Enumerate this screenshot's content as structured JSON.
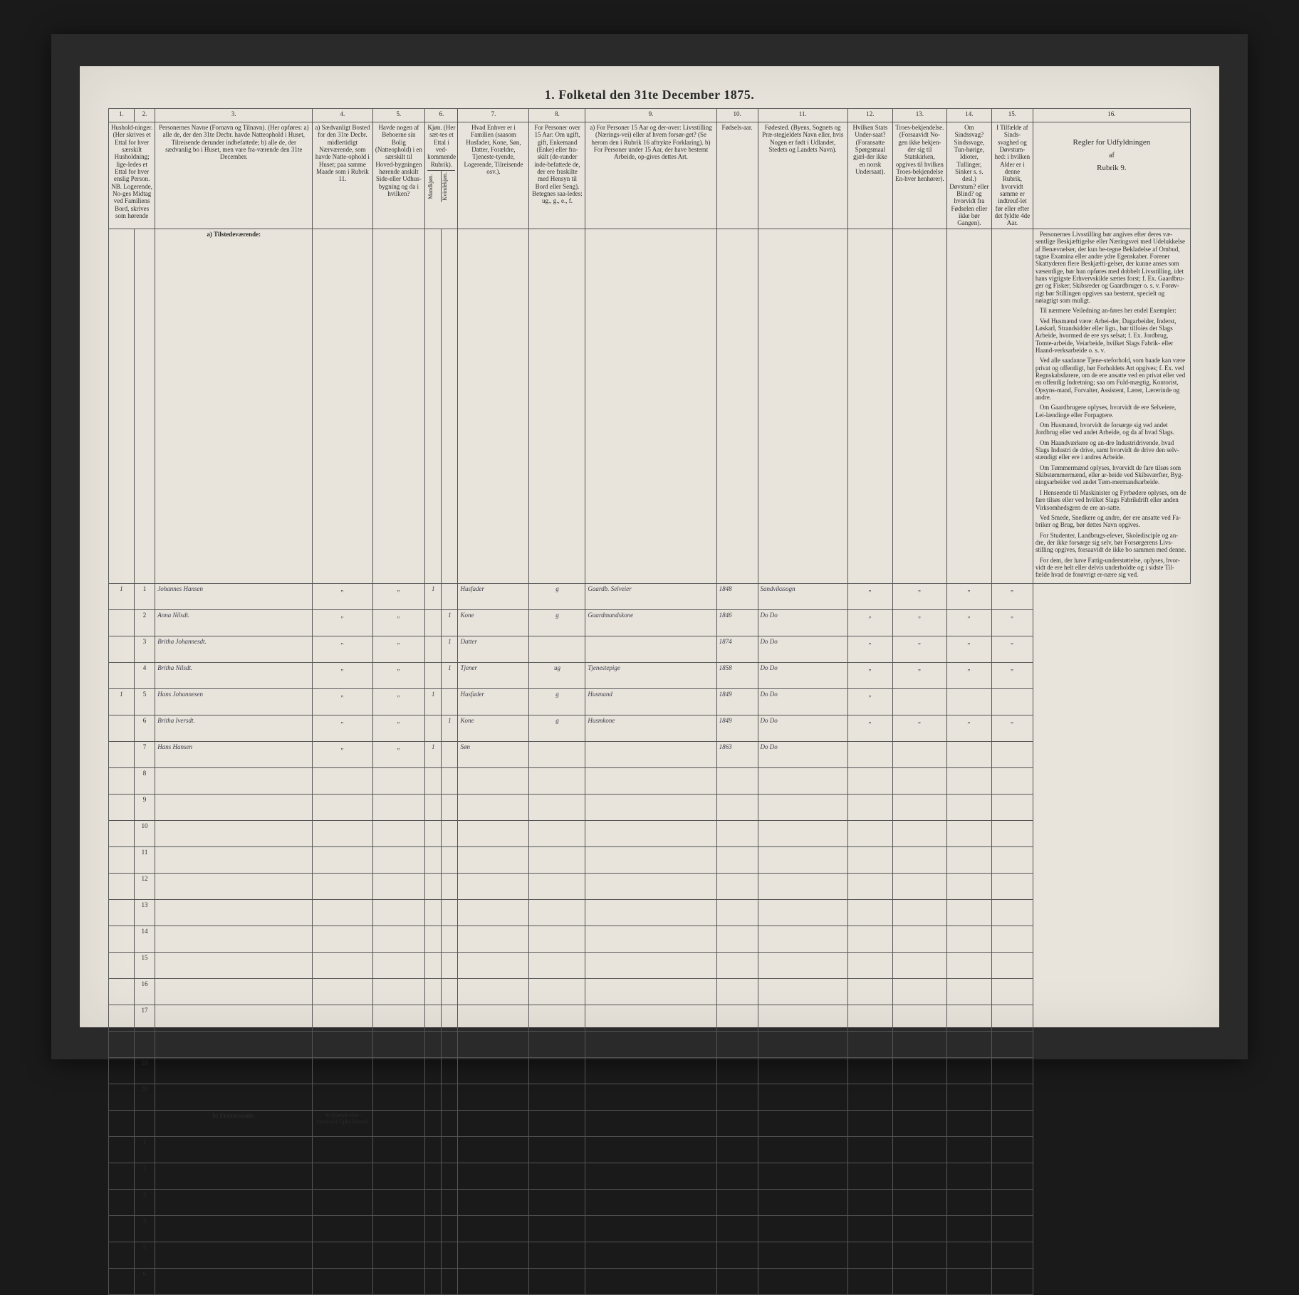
{
  "title": "1.  Folketal  den 31te December 1875.",
  "col_nums": [
    "1.",
    "2.",
    "3.",
    "4.",
    "5.",
    "6.",
    "7.",
    "8.",
    "9.",
    "10.",
    "11.",
    "12.",
    "13.",
    "14.",
    "15.",
    "16."
  ],
  "headers": {
    "c1": "Hushold-ninger. (Her skrives et Ettal for hver særskilt Husholdning; lige-ledes et Ettal for hver enslig Person. NB. Logerende, No-ges Midtag ved Familiens Bord, skrives som hørende",
    "c3": "Personernes Navne (Fornavn og Tilnavn). (Her opføres: a) alle de, der den 31te Decbr. havde Natteophold i Huset, Tilreisende derunder indbefattede; b) alle de, der sædvanlig bo i Huset, men vare fra-værende den 31te December.",
    "c4": "a) Sædvanligt Bosted for den 31te Decbr. midlertidigt Nærværende, som havde Natte-ophold i Huset; paa samme Maade som i Rubrik 11.",
    "c5": "Havde nogen af Beboerne sin Bolig (Natteophold) i en særskilt til Hoved-bygningen hørende anskilt Side-eller Udhus-bygning og da i hvilken?",
    "c6": "Kjøn. (Her sæt-tes et Ettal i ved-kommende Rubrik).",
    "c7": "Hvad Enhver er i Familien (saasom Husfader, Kone, Søn, Datter, Forældre, Tjeneste-tyende, Logerende, Tilreisende osv.).",
    "c8": "For Personer over 15 Aar: Om ugift, gift, Enkemand (Enke) eller fra-skilt (de-runder inde-befattede de, der ere fraskilte med Hensyn til Bord eller Seng). Betegnes saa-ledes: ug., g., e., f.",
    "c9": "a) For Personer 15 Aar og der-over: Livsstilling (Nærings-vei) eller af hvem forsør-get? (Se herom den i Rubrik 16 aftrykte Forklaring). b) For Personer under 15 Aar, der have bestemt Arbeide, op-gives dettes Art.",
    "c10": "Fødsels-aar.",
    "c11": "Fødested. (Byens, Sognets og Præ-stegjeldets Navn eller, hvis Nogen er født i Udlandet, Stedets og Landets Navn).",
    "c12": "Hvilken Stats Under-saat? (Foransatte Spørgsmaal gjæl-der ikke en norsk Undersaat).",
    "c13": "Troes-bekjendelse. (Forsaavidt No-gen ikke bekjen-der sig til Statskirken, opgives til hvilken Troes-bekjendelse En-hver henhører).",
    "c14": "Om Sindssvag? Sindssvage, Tun-hørige, Idioter, Tullinger, Sinker s. s. desl.) Døvstum? eller Blind? og hvorvidt fra Fødselen eller ikke bør Gangen).",
    "c15": "I Tilfælde af Sinds-svaghed og Døvstum-hed: i hvilken Alder er i denne Rubrik, hvorvidt samme er indtreuf-let før eller efter det fyldte 4de Aar.",
    "c16": "Regler for Udfyldningen",
    "c16b": "af",
    "c16c": "Rubrik 9."
  },
  "c6sub": {
    "m": "Mandkjøn.",
    "k": "Kvindekjøn."
  },
  "section_a": "a) Tilstedeværende:",
  "section_b": "b) Fraværende:",
  "section_b_col4": "b) Kjendt eller formodet Opholdssted.",
  "rows": [
    {
      "n1": "1",
      "n2": "1",
      "name": "Johannes Hansen",
      "c4": "„",
      "c5": "„",
      "m": "1",
      "k": "",
      "rel": "Husfader",
      "ms": "g",
      "occ": "Gaardb. Selveier",
      "yr": "1848",
      "bp": "Sandvikssogn",
      "c12": "„",
      "c13": "„",
      "c14": "„",
      "c15": "„"
    },
    {
      "n1": "",
      "n2": "2",
      "name": "Anna Nilsdt.",
      "c4": "„",
      "c5": "„",
      "m": "",
      "k": "1",
      "rel": "Kone",
      "ms": "g",
      "occ": "Gaardmandskone",
      "yr": "1846",
      "bp": "Do   Do",
      "c12": "„",
      "c13": "„",
      "c14": "„",
      "c15": "„"
    },
    {
      "n1": "",
      "n2": "3",
      "name": "Britha Johannesdt.",
      "c4": "„",
      "c5": "„",
      "m": "",
      "k": "1",
      "rel": "Datter",
      "ms": "",
      "occ": "",
      "yr": "1874",
      "bp": "Do   Do",
      "c12": "„",
      "c13": "„",
      "c14": "„",
      "c15": "„"
    },
    {
      "n1": "",
      "n2": "4",
      "name": "Britha Nilsdt.",
      "c4": "„",
      "c5": "„",
      "m": "",
      "k": "1",
      "rel": "Tjener",
      "ms": "ug",
      "occ": "Tjenestepige",
      "yr": "1858",
      "bp": "Do   Do",
      "c12": "„",
      "c13": "„",
      "c14": "„",
      "c15": "„"
    },
    {
      "n1": "1",
      "n2": "5",
      "name": "Hans Johannesen",
      "c4": "„",
      "c5": "„",
      "m": "1",
      "k": "",
      "rel": "Husfader",
      "ms": "g",
      "occ": "Husmand",
      "yr": "1849",
      "bp": "Do   Do",
      "c12": "„",
      "c13": "",
      "c14": "",
      "c15": ""
    },
    {
      "n1": "",
      "n2": "6",
      "name": "Britha Iversdt.",
      "c4": "„",
      "c5": "„",
      "m": "",
      "k": "1",
      "rel": "Kone",
      "ms": "g",
      "occ": "Husmkone",
      "yr": "1849",
      "bp": "Do   Do",
      "c12": "„",
      "c13": "„",
      "c14": "„",
      "c15": "„"
    },
    {
      "n1": "",
      "n2": "7",
      "name": "Hans Hansen",
      "c4": "„",
      "c5": "„",
      "m": "1",
      "k": "",
      "rel": "Søn",
      "ms": "",
      "occ": "",
      "yr": "1863",
      "bp": "Do   Do",
      "c12": "",
      "c13": "",
      "c14": "",
      "c15": ""
    }
  ],
  "instructions": [
    "Personernes Livsstilling bør angives efter deres væ-sentlige Beskjæftigelse eller Næringsvei med Udelukkelse af Benævnelser, der kun be-tegne Bekladelse af Ombud, tagne Examina eller andre ydre Egenskaber. Forener Skattyderen flere Beskjæfti-gelser, der kunne anses som væsentlige, bør hun opføres med dobbelt Livsstilling, idet hans vigtigste Erhvervskilde sættes forst; f. Ex. Gaardbru-ger og Fisker; Skibsreder og Gaardbruger o. s. v. Forøv-rigt bør Stillingen opgives saa bestemt, specielt og nøiagtigt som muligt.",
    "Til nærmere Veiledning an-føres her endel Exempler:",
    "Ved Husmænd være: Arbei-der, Dagarbeider, Inderst, Løskarl, Strandsidder eller lign., bør tilfoies det Slags Arbeide, hvormed de ere sys selsat; f. Ex. Jordbrug, Tomte-arbeide, Veiarbeide, hvilket Slags Fabrik- eller Haand-verksarbeide o. s. v.",
    "Ved alle saadanne Tjene-steforhold, som baade kan være privat og offentligt, bør Forholdets Art opgives; f. Ex. ved Regnskabsførere, om de ere ansatte ved en privat eller ved en offentlig Indretning; saa om Fuld-mægtig, Kontorist, Opsyns-mand, Forvalter, Assistent, Lærer, Lærerinde og andre.",
    "Om Gaardbrugere oplyses, hvorvidt de ere Selveiere, Lei-lændinge eller Forpagtere.",
    "Om Husmænd, hvorvidt de forsørge sig ved andet Jordbrug eller ved andet Arbeide, og da af hvad Slags.",
    "Om Haandværkere og an-dre Industridrivende, hvad Slags Industri de drive, samt hvorvidt de drive den selv-stændigt eller ere i andres Arbeide.",
    "Om Tømmermænd oplyses, hvorvidt de fare tilsøs som Skibstømmermænd, eller ar-beide ved Skibsværfter, Byg-ningsarbeider ved andet Tøm-mermandsarbeide.",
    "I Henseende til Maskinister og Fyrbødere oplyses, om de fare tilsøs eller ved hvilket Slags Fabrikdrift eller anden Virksomhedsgren de ere an-satte.",
    "Ved Smede, Snedkere og andre, der ere ansatte ved Fa-briker og Brug, bør dettes Navn opgives.",
    "For Studenter, Landbrugs-elever, Skoledisciple og an-dre, der ikke forsørge sig selv, bør Forsørgerens Livs-stilling opgives, forsaavidt de ikke bo sammen med denne.",
    "For dem, der have Fattig-understøttelse, oplyses, hvor-vidt de ere helt eller delvis underholdte og i sidste Til-fælde hvad de forøvrigt er-nære sig ved."
  ],
  "col_widths": {
    "c1": 34,
    "c2": 28,
    "c3": 210,
    "c4": 80,
    "c5": 70,
    "c6m": 22,
    "c6k": 22,
    "c7": 95,
    "c8": 75,
    "c9": 175,
    "c10": 55,
    "c11": 120,
    "c12": 60,
    "c13": 72,
    "c14": 60,
    "c15": 55,
    "c16": 210
  }
}
